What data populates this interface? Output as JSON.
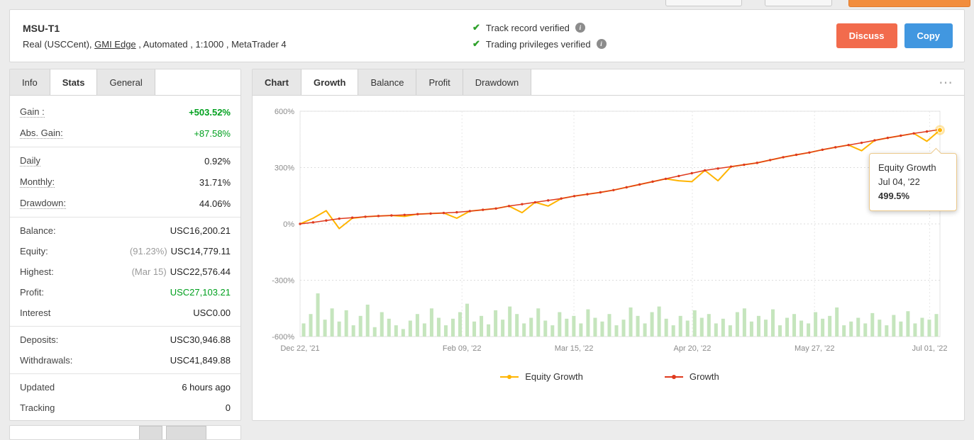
{
  "icons": {
    "check": "✔",
    "info": "i",
    "more": "⋯"
  },
  "colors": {
    "green": "#00a01e",
    "discuss_button": "#f26b4c",
    "copy_button": "#4197e0",
    "equity_line": "#ffb400",
    "growth_line": "#df3a1e",
    "bars": "#c5e5bd"
  },
  "header": {
    "title": "MSU-T1",
    "subtitle": {
      "pre": "Real (USCCent), ",
      "link": "GMI Edge",
      "post": " , Automated , 1:1000 , MetaTrader 4"
    },
    "verified": [
      {
        "label": "Track record verified"
      },
      {
        "label": "Trading privileges verified"
      }
    ],
    "discuss_label": "Discuss",
    "copy_label": "Copy"
  },
  "info_panel": {
    "tabs": [
      {
        "label": "Info"
      },
      {
        "label": "Stats",
        "active": true
      },
      {
        "label": "General"
      }
    ],
    "groups": [
      {
        "rows": [
          {
            "key": "gain",
            "label": "Gain :",
            "dotted": true,
            "value": "+503.52%",
            "value_class": "green bold"
          },
          {
            "key": "abs-gain",
            "label": "Abs. Gain:",
            "dotted": true,
            "value": "+87.58%",
            "value_class": "green"
          }
        ]
      },
      {
        "rows": [
          {
            "key": "daily",
            "label": "Daily",
            "dotted": true,
            "value": "0.92%"
          },
          {
            "key": "monthly",
            "label": "Monthly:",
            "dotted": true,
            "value": "31.71%"
          },
          {
            "key": "drawdown",
            "label": "Drawdown:",
            "dotted": true,
            "value": "44.06%"
          }
        ]
      },
      {
        "rows": [
          {
            "key": "balance",
            "label": "Balance:",
            "value": "USC16,200.21"
          },
          {
            "key": "equity",
            "label": "Equity:",
            "prefix": "(91.23%)",
            "value": "USC14,779.11"
          },
          {
            "key": "highest",
            "label": "Highest:",
            "prefix": "(Mar 15)",
            "value": "USC22,576.44"
          },
          {
            "key": "profit",
            "label": "Profit:",
            "value": "USC27,103.21",
            "value_class": "green"
          },
          {
            "key": "interest",
            "label": "Interest",
            "value": "USC0.00"
          }
        ]
      },
      {
        "rows": [
          {
            "key": "deposits",
            "label": "Deposits:",
            "value": "USC30,946.88"
          },
          {
            "key": "withdrawals",
            "label": "Withdrawals:",
            "value": "USC41,849.88"
          }
        ]
      },
      {
        "rows": [
          {
            "key": "updated",
            "label": "Updated",
            "value": "6 hours ago"
          },
          {
            "key": "tracking",
            "label": "Tracking",
            "value": "0"
          }
        ]
      }
    ]
  },
  "chart_panel": {
    "tabs": [
      {
        "label": "Chart",
        "title": true
      },
      {
        "label": "Growth",
        "active": true
      },
      {
        "label": "Balance"
      },
      {
        "label": "Profit"
      },
      {
        "label": "Drawdown"
      }
    ]
  },
  "chart_data": {
    "type": "line",
    "ylim": [
      -600,
      600
    ],
    "yticks": [
      "600%",
      "300%",
      "0%",
      "-300%",
      "-600%"
    ],
    "xticks": [
      "Dec 22, '21",
      "Feb 09, '22",
      "Mar 15, '22",
      "Apr 20, '22",
      "May 27, '22",
      "Jul 01, '22"
    ],
    "xtick_pos": [
      0,
      0.253,
      0.428,
      0.613,
      0.804,
      0.984
    ],
    "series": [
      {
        "name": "Equity Growth",
        "color": "#ffb400",
        "values": [
          0,
          30,
          70,
          -25,
          30,
          38,
          42,
          45,
          40,
          52,
          55,
          58,
          30,
          68,
          75,
          82,
          95,
          60,
          115,
          95,
          135,
          148,
          158,
          168,
          180,
          195,
          210,
          225,
          240,
          230,
          225,
          285,
          230,
          305,
          315,
          325,
          340,
          355,
          368,
          380,
          395,
          408,
          420,
          390,
          445,
          458,
          470,
          482,
          440,
          499.5
        ]
      },
      {
        "name": "Growth",
        "color": "#df3a1e",
        "values": [
          0,
          8,
          18,
          28,
          33,
          38,
          42,
          45,
          48,
          52,
          55,
          58,
          62,
          68,
          75,
          82,
          95,
          105,
          115,
          125,
          135,
          148,
          158,
          168,
          180,
          195,
          210,
          225,
          240,
          255,
          270,
          285,
          295,
          305,
          315,
          325,
          340,
          355,
          368,
          380,
          395,
          408,
          420,
          432,
          445,
          458,
          470,
          482,
          492,
          503
        ]
      }
    ],
    "bars": {
      "color": "#c5e5bd",
      "baseline": -600,
      "values": [
        70,
        120,
        230,
        90,
        150,
        80,
        140,
        60,
        110,
        170,
        50,
        130,
        95,
        60,
        40,
        85,
        120,
        70,
        150,
        100,
        60,
        95,
        130,
        175,
        80,
        110,
        65,
        140,
        90,
        160,
        120,
        70,
        100,
        150,
        85,
        60,
        130,
        95,
        110,
        70,
        145,
        100,
        80,
        120,
        60,
        90,
        155,
        110,
        70,
        130,
        160,
        95,
        60,
        110,
        85,
        140,
        100,
        120,
        70,
        95,
        60,
        130,
        150,
        80,
        110,
        90,
        145,
        60,
        100,
        120,
        85,
        70,
        130,
        95,
        110,
        155,
        60,
        80,
        100,
        70,
        125,
        90,
        60,
        115,
        80,
        135,
        70,
        100,
        90,
        120
      ]
    },
    "tooltip": {
      "series": "Equity Growth",
      "date": "Jul 04, '22",
      "value": "499.5%"
    }
  }
}
